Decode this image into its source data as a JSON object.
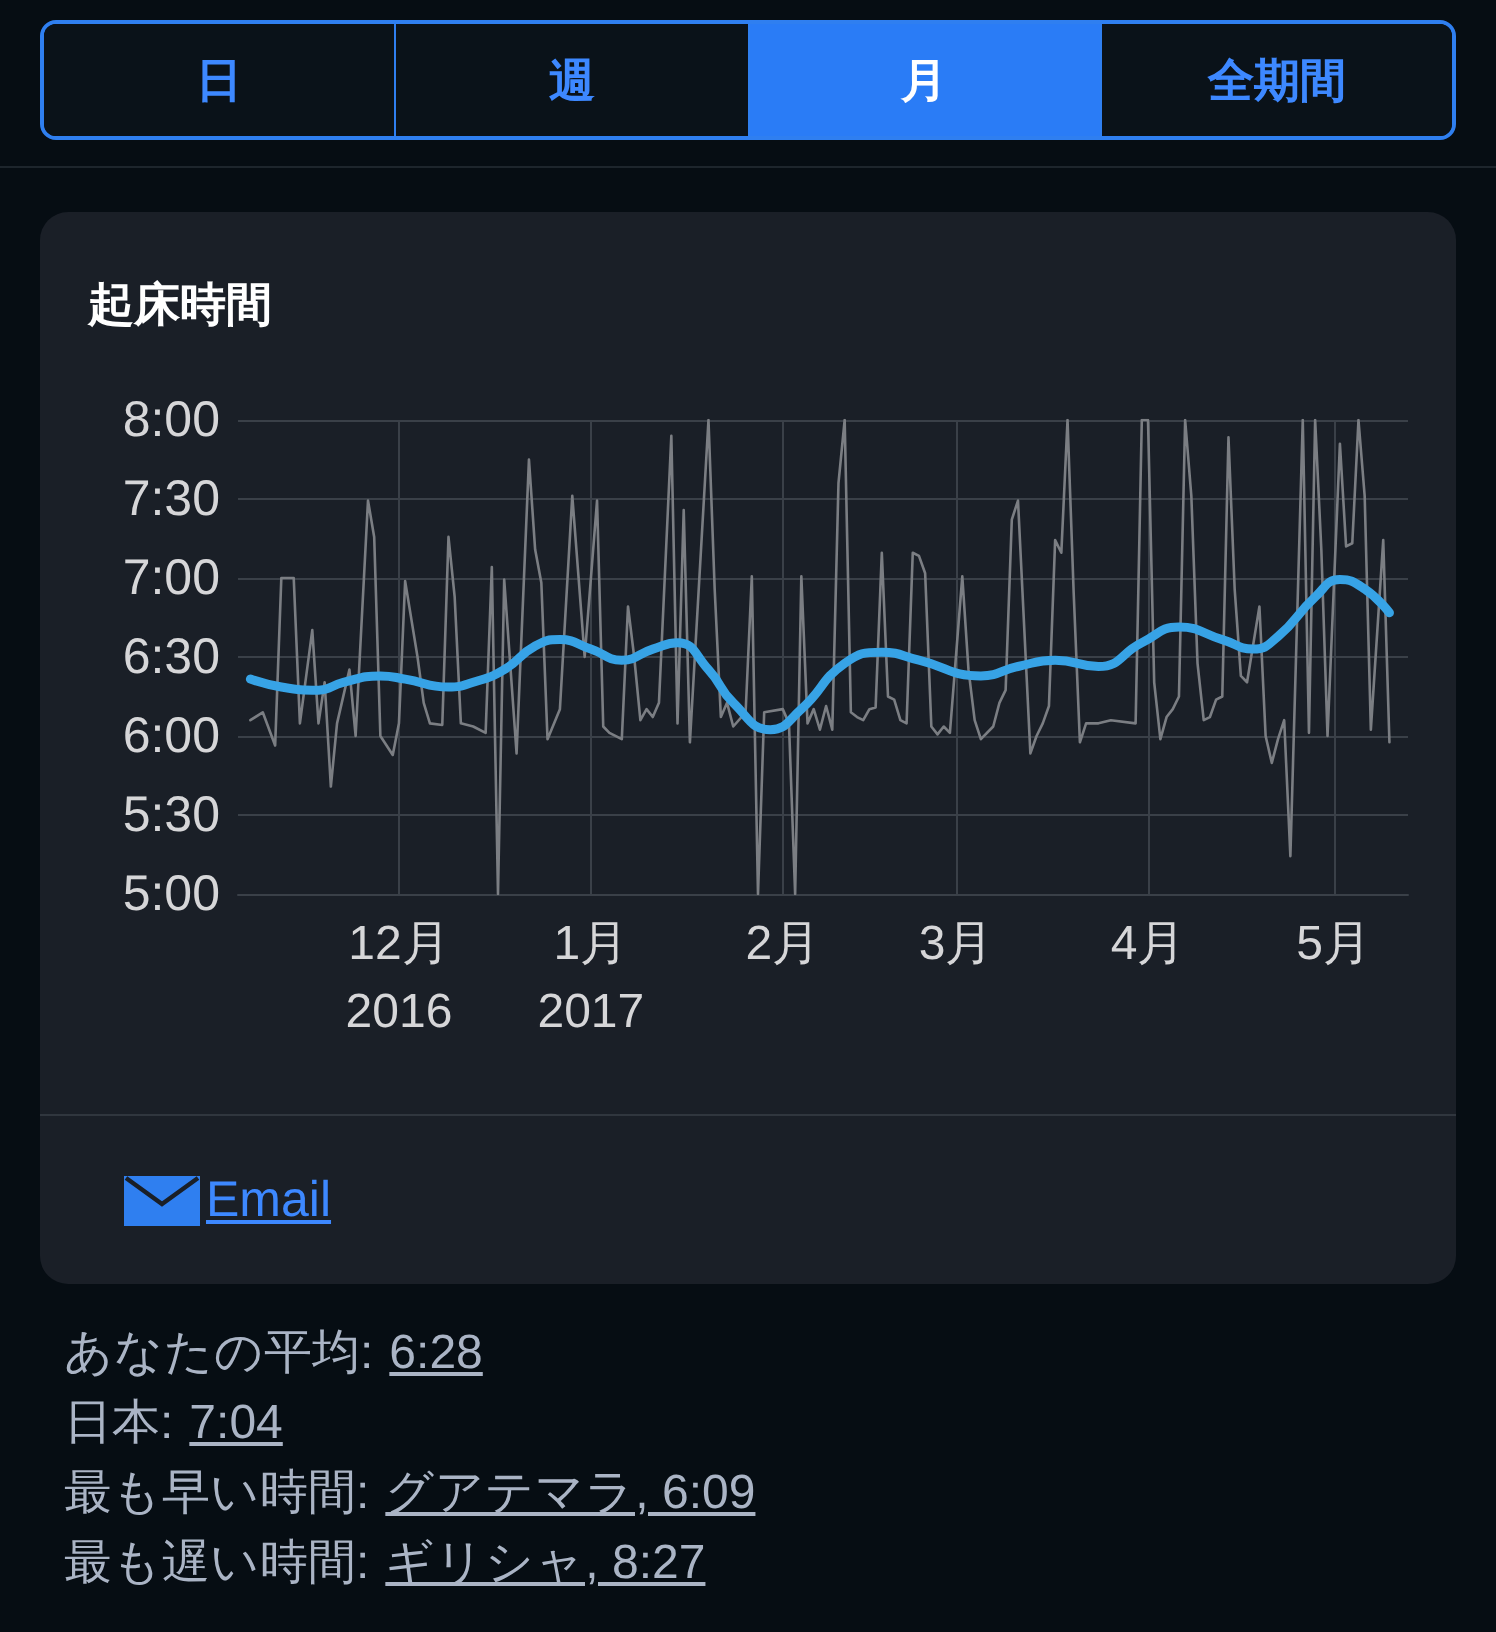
{
  "chart_data": {
    "type": "line",
    "title": "起床時間",
    "annotations": [
      "日",
      "週",
      "月",
      "全期間",
      "Email",
      "あなたの平均:",
      "6:28",
      "日本:",
      "7:04",
      "最も早い時間:",
      "グアテマラ, 6:09",
      "最も遅い時間:",
      "ギリシャ, 8:27"
    ],
    "xlim": [
      "2016-11-05",
      "2017-05-13"
    ],
    "xticks": [
      {
        "value": "2016-12-01",
        "label": "12月\n2016"
      },
      {
        "value": "2017-01-01",
        "label": "1月\n2017"
      },
      {
        "value": "2017-02-01",
        "label": "2月"
      },
      {
        "value": "2017-03-01",
        "label": "3月"
      },
      {
        "value": "2017-04-01",
        "label": "4月"
      },
      {
        "value": "2017-05-01",
        "label": "5月"
      }
    ],
    "ylim": [
      5,
      8
    ],
    "yticks": [
      {
        "value": 5,
        "label": "5:00"
      },
      {
        "value": 5.5,
        "label": "5:30"
      },
      {
        "value": 6,
        "label": "6:00"
      },
      {
        "value": 6.5,
        "label": "6:30"
      },
      {
        "value": 7,
        "label": "7:00"
      },
      {
        "value": 7.5,
        "label": "7:30"
      },
      {
        "value": 8,
        "label": "8:00"
      }
    ],
    "grid": true,
    "marker": "none",
    "series": [
      {
        "color": "#7b7e83",
        "x": [
          "2016-11-07",
          "2016-11-09",
          "2016-11-11",
          "2016-11-12",
          "2016-11-14",
          "2016-11-15",
          "2016-11-17",
          "2016-11-18",
          "2016-11-19",
          "2016-11-20",
          "2016-11-21",
          "2016-11-23",
          "2016-11-24",
          "2016-11-26",
          "2016-11-27",
          "2016-11-28",
          "2016-11-30",
          "2016-12-01",
          "2016-12-02",
          "2016-12-04",
          "2016-12-05",
          "2016-12-06",
          "2016-12-08",
          "2016-12-09",
          "2016-12-10",
          "2016-12-11",
          "2016-12-13",
          "2016-12-15",
          "2016-12-16",
          "2016-12-17",
          "2016-12-18",
          "2016-12-20",
          "2016-12-22",
          "2016-12-23",
          "2016-12-24",
          "2016-12-25",
          "2016-12-27",
          "2016-12-29",
          "2016-12-30",
          "2016-12-31",
          "2017-01-02",
          "2017-01-03",
          "2017-01-04",
          "2017-01-06",
          "2017-01-07",
          "2017-01-08",
          "2017-01-09",
          "2017-01-10",
          "2017-01-11",
          "2017-01-12",
          "2017-01-14",
          "2017-01-15",
          "2017-01-16",
          "2017-01-17",
          "2017-01-20",
          "2017-01-21",
          "2017-01-22",
          "2017-01-23",
          "2017-01-24",
          "2017-01-26",
          "2017-01-27",
          "2017-01-28",
          "2017-01-29",
          "2017-02-01",
          "2017-02-02",
          "2017-02-03",
          "2017-02-04",
          "2017-02-05",
          "2017-02-06",
          "2017-02-07",
          "2017-02-08",
          "2017-02-09",
          "2017-02-10",
          "2017-02-11",
          "2017-02-12",
          "2017-02-13",
          "2017-02-14",
          "2017-02-15",
          "2017-02-16",
          "2017-02-17",
          "2017-02-18",
          "2017-02-19",
          "2017-02-20",
          "2017-02-21",
          "2017-02-22",
          "2017-02-23",
          "2017-02-24",
          "2017-02-25",
          "2017-02-26",
          "2017-02-27",
          "2017-02-28",
          "2017-03-02",
          "2017-03-03",
          "2017-03-04",
          "2017-03-05",
          "2017-03-07",
          "2017-03-08",
          "2017-03-09",
          "2017-03-10",
          "2017-03-11",
          "2017-03-13",
          "2017-03-14",
          "2017-03-15",
          "2017-03-16",
          "2017-03-17",
          "2017-03-18",
          "2017-03-19",
          "2017-03-20",
          "2017-03-21",
          "2017-03-22",
          "2017-03-24",
          "2017-03-26",
          "2017-03-30",
          "2017-03-31",
          "2017-04-01",
          "2017-04-02",
          "2017-04-03",
          "2017-04-04",
          "2017-04-05",
          "2017-04-06",
          "2017-04-07",
          "2017-04-08",
          "2017-04-09",
          "2017-04-10",
          "2017-04-11",
          "2017-04-12",
          "2017-04-13",
          "2017-04-14",
          "2017-04-15",
          "2017-04-16",
          "2017-04-17",
          "2017-04-19",
          "2017-04-20",
          "2017-04-21",
          "2017-04-22",
          "2017-04-23",
          "2017-04-24",
          "2017-04-26",
          "2017-04-27",
          "2017-04-28",
          "2017-04-29",
          "2017-04-30",
          "2017-05-02",
          "2017-05-03",
          "2017-05-04",
          "2017-05-05",
          "2017-05-06",
          "2017-05-07",
          "2017-05-09",
          "2017-05-10"
        ],
        "values": [
          6.1,
          6.15,
          5.94,
          7.0,
          7.0,
          6.08,
          6.67,
          6.08,
          6.34,
          5.68,
          6.08,
          6.42,
          6.0,
          7.49,
          7.26,
          6.0,
          5.88,
          6.08,
          6.98,
          6.5,
          6.21,
          6.08,
          6.07,
          7.26,
          6.88,
          6.08,
          6.06,
          6.02,
          7.07,
          5.0,
          6.99,
          5.89,
          7.75,
          7.18,
          6.97,
          5.98,
          6.17,
          7.52,
          7.01,
          6.5,
          7.49,
          6.06,
          6.02,
          5.98,
          6.82,
          6.5,
          6.1,
          6.17,
          6.12,
          6.21,
          7.9,
          6.08,
          7.43,
          5.96,
          8.0,
          6.93,
          6.12,
          6.21,
          6.06,
          6.15,
          7.01,
          5.0,
          6.15,
          6.17,
          6.08,
          5.0,
          7.01,
          6.08,
          6.17,
          6.04,
          6.19,
          6.04,
          7.6,
          8.0,
          6.15,
          6.12,
          6.1,
          6.17,
          6.18,
          7.16,
          6.25,
          6.23,
          6.1,
          6.08,
          7.16,
          7.14,
          7.03,
          6.06,
          6.01,
          6.06,
          6.02,
          7.01,
          6.42,
          6.1,
          5.98,
          6.06,
          6.21,
          6.29,
          7.37,
          7.49,
          5.89,
          6.0,
          6.08,
          6.19,
          7.24,
          7.16,
          8.0,
          6.9,
          5.96,
          6.08,
          6.08,
          6.1,
          6.08,
          8.0,
          8.0,
          6.34,
          5.98,
          6.12,
          6.17,
          6.25,
          8.0,
          7.52,
          6.46,
          6.1,
          6.12,
          6.23,
          6.25,
          7.89,
          6.93,
          6.38,
          6.34,
          6.82,
          6.0,
          5.83,
          5.98,
          6.1,
          5.24,
          8.0,
          6.02,
          8.0,
          7.18,
          6.0,
          7.85,
          7.2,
          7.22,
          8.0,
          7.52,
          6.04,
          7.24,
          5.96
        ]
      },
      {
        "color": "#37a3e6",
        "x": [
          "2016-11-07",
          "2016-11-12",
          "2016-11-18",
          "2016-11-22",
          "2016-11-28",
          "2016-12-02",
          "2016-12-09",
          "2016-12-13",
          "2016-12-18",
          "2016-12-23",
          "2016-12-27",
          "2017-01-01",
          "2017-01-06",
          "2017-01-11",
          "2017-01-15",
          "2017-01-20",
          "2017-01-24",
          "2017-01-30",
          "2017-02-04",
          "2017-02-11",
          "2017-02-17",
          "2017-02-23",
          "2017-03-05",
          "2017-03-11",
          "2017-03-17",
          "2017-03-24",
          "2017-03-31",
          "2017-04-06",
          "2017-04-13",
          "2017-04-18",
          "2017-04-22",
          "2017-04-28",
          "2017-05-02",
          "2017-05-06",
          "2017-05-10"
        ],
        "values": [
          6.36,
          6.31,
          6.29,
          6.34,
          6.38,
          6.36,
          6.31,
          6.34,
          6.42,
          6.57,
          6.61,
          6.55,
          6.48,
          6.55,
          6.59,
          6.42,
          6.21,
          6.04,
          6.17,
          6.46,
          6.53,
          6.48,
          6.38,
          6.44,
          6.48,
          6.44,
          6.59,
          6.69,
          6.61,
          6.55,
          6.63,
          6.88,
          6.99,
          6.93,
          6.78
        ]
      }
    ]
  }
}
